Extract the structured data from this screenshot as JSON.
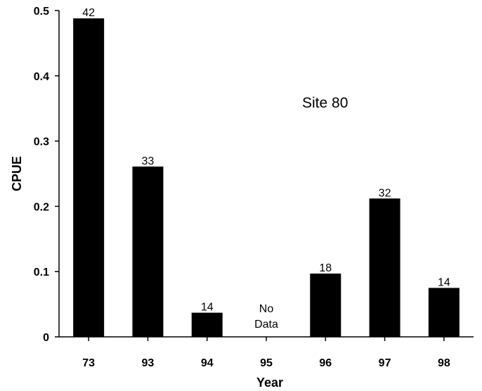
{
  "chart_data": {
    "type": "bar",
    "title": "",
    "annotation": "Site 80",
    "xlabel": "Year",
    "ylabel": "CPUE",
    "categories": [
      "73",
      "93",
      "94",
      "95",
      "96",
      "97",
      "98"
    ],
    "values": [
      0.488,
      0.261,
      0.037,
      null,
      0.097,
      0.212,
      0.075
    ],
    "data_labels": [
      "42",
      "33",
      "14",
      "",
      "18",
      "32",
      "14"
    ],
    "no_data_label": [
      "No",
      "Data"
    ],
    "ylim": [
      0,
      0.5
    ],
    "yticks": [
      "0",
      "0.1",
      "0.2",
      "0.3",
      "0.4",
      "0.5"
    ],
    "ytick_values": [
      0,
      0.1,
      0.2,
      0.3,
      0.4,
      0.5
    ],
    "grid": false,
    "bar_color": "#000000"
  }
}
